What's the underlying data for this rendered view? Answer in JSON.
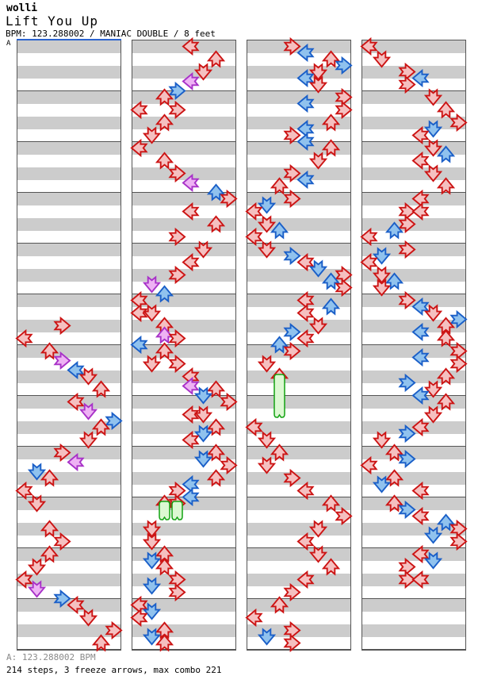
{
  "header": {
    "artist": "wolli",
    "title": "Lift You Up",
    "meta": "BPM: 123.288002 / MANIAC DOUBLE / 8 feet",
    "bpm_marker": "A"
  },
  "footer": {
    "bpm_line": "A: 123.288002 BPM",
    "stats_line": "214 steps, 3 freeze arrows, max combo 221"
  },
  "colors": {
    "quarter_stroke": "#cc1414",
    "quarter_fill": "#f5c0c0",
    "eighth_stroke": "#1a5fc8",
    "eighth_fill": "#90c2ee",
    "sixteenth_stroke": "#a832c8",
    "sixteenth_fill": "#eeb2f4",
    "freeze_stroke": "#11a211",
    "freeze_fill": "#dcf8d2",
    "stripe_gray": "#cccccc",
    "measure_line": "#555555",
    "bpm_line_blue": "#2b63cf",
    "footer_gray": "#8a8a8a"
  },
  "chart": {
    "note_kinds": [
      "quarter-red",
      "eighth-blue",
      "sixteenth-purple"
    ],
    "column_directions": [
      "left",
      "down",
      "up",
      "right",
      "left",
      "down",
      "up",
      "right"
    ],
    "measures_per_panel": 12,
    "panels": [
      {
        "steps": [
          [
            22,
            3,
            0
          ],
          [
            23,
            0,
            0
          ],
          [
            24,
            2,
            0
          ],
          [
            24.75,
            3,
            2
          ],
          [
            25.5,
            4,
            1
          ],
          [
            26,
            5,
            0
          ],
          [
            27,
            6,
            0
          ],
          [
            28,
            4,
            0
          ],
          [
            28.75,
            5,
            2
          ],
          [
            29.5,
            7,
            1
          ],
          [
            30,
            6,
            0
          ],
          [
            31,
            5,
            0
          ],
          [
            32,
            3,
            0
          ],
          [
            32.75,
            4,
            2
          ],
          [
            33.5,
            1,
            1
          ],
          [
            34,
            2,
            0
          ],
          [
            35,
            0,
            0
          ],
          [
            36,
            1,
            0
          ],
          [
            38,
            2,
            0
          ],
          [
            39,
            3,
            0
          ],
          [
            40,
            2,
            0
          ],
          [
            41,
            1,
            0
          ],
          [
            42,
            0,
            0
          ],
          [
            42.75,
            1,
            2
          ],
          [
            43.5,
            3,
            1
          ],
          [
            44,
            4,
            0
          ],
          [
            45,
            5,
            0
          ],
          [
            46,
            7,
            0
          ],
          [
            47,
            6,
            0
          ]
        ]
      },
      {
        "steps": [
          [
            0,
            4,
            0
          ],
          [
            1,
            6,
            0
          ],
          [
            2,
            5,
            0
          ],
          [
            2.75,
            4,
            2
          ],
          [
            3.5,
            3,
            1
          ],
          [
            4,
            2,
            0
          ],
          [
            5,
            0,
            0
          ],
          [
            5,
            3,
            0
          ],
          [
            6,
            2,
            0
          ],
          [
            7,
            1,
            0
          ],
          [
            8,
            0,
            0
          ],
          [
            9,
            2,
            0
          ],
          [
            10,
            3,
            0
          ],
          [
            10.75,
            4,
            2
          ],
          [
            11.5,
            6,
            1
          ],
          [
            12,
            7,
            0
          ],
          [
            13,
            4,
            0
          ],
          [
            14,
            6,
            0
          ],
          [
            15,
            3,
            0
          ],
          [
            16,
            5,
            0
          ],
          [
            17,
            4,
            0
          ],
          [
            18,
            3,
            0
          ],
          [
            18.75,
            1,
            2
          ],
          [
            19.5,
            2,
            1
          ],
          [
            20,
            0,
            0
          ],
          [
            21,
            0,
            0
          ],
          [
            21,
            1,
            0
          ],
          [
            22,
            2,
            0
          ],
          [
            22.75,
            2,
            2
          ],
          [
            23,
            3,
            0
          ],
          [
            23.5,
            0,
            1
          ],
          [
            24,
            2,
            0
          ],
          [
            25,
            1,
            0
          ],
          [
            25,
            3,
            0
          ],
          [
            26,
            4,
            0
          ],
          [
            26.75,
            4,
            2
          ],
          [
            27,
            6,
            0
          ],
          [
            27.5,
            5,
            1
          ],
          [
            28,
            7,
            0
          ],
          [
            29,
            4,
            0
          ],
          [
            29,
            5,
            0
          ],
          [
            30,
            6,
            0
          ],
          [
            30.5,
            5,
            1
          ],
          [
            31,
            4,
            0
          ],
          [
            32,
            6,
            0
          ],
          [
            32.5,
            5,
            1
          ],
          [
            33,
            7,
            0
          ],
          [
            34,
            6,
            0
          ],
          [
            34.5,
            4,
            1
          ],
          [
            35,
            3,
            0
          ],
          [
            35.5,
            4,
            1
          ],
          [
            36,
            2,
            0
          ],
          [
            36,
            3,
            0
          ],
          [
            38,
            1,
            0
          ],
          [
            39,
            1,
            0
          ],
          [
            40,
            2,
            0
          ],
          [
            40.5,
            1,
            1
          ],
          [
            41,
            2,
            0
          ],
          [
            42,
            3,
            0
          ],
          [
            42.5,
            1,
            1
          ],
          [
            43,
            3,
            0
          ],
          [
            44,
            0,
            0
          ],
          [
            44.5,
            1,
            1
          ],
          [
            45,
            0,
            0
          ],
          [
            46,
            2,
            0
          ],
          [
            46.5,
            1,
            1
          ],
          [
            47,
            2,
            0
          ]
        ]
      },
      {
        "steps": [
          [
            0,
            3,
            0
          ],
          [
            0.5,
            4,
            1
          ],
          [
            1,
            6,
            0
          ],
          [
            1.5,
            7,
            1
          ],
          [
            2,
            5,
            0
          ],
          [
            2.5,
            4,
            1
          ],
          [
            3,
            5,
            0
          ],
          [
            4,
            7,
            0
          ],
          [
            4.5,
            4,
            1
          ],
          [
            5,
            7,
            0
          ],
          [
            6,
            6,
            0
          ],
          [
            6.5,
            4,
            1
          ],
          [
            7,
            3,
            0
          ],
          [
            7.5,
            4,
            1
          ],
          [
            8,
            6,
            0
          ],
          [
            9,
            5,
            0
          ],
          [
            10,
            3,
            0
          ],
          [
            10.5,
            4,
            1
          ],
          [
            11,
            2,
            0
          ],
          [
            12,
            3,
            0
          ],
          [
            12.5,
            1,
            1
          ],
          [
            13,
            0,
            0
          ],
          [
            14,
            1,
            0
          ],
          [
            14.5,
            2,
            1
          ],
          [
            15,
            0,
            0
          ],
          [
            16,
            1,
            0
          ],
          [
            16.5,
            3,
            1
          ],
          [
            17,
            4,
            0
          ],
          [
            17.5,
            5,
            1
          ],
          [
            18,
            7,
            0
          ],
          [
            18.5,
            6,
            1
          ],
          [
            19,
            7,
            0
          ],
          [
            20,
            4,
            0
          ],
          [
            20.5,
            6,
            1
          ],
          [
            21,
            4,
            0
          ],
          [
            22,
            5,
            0
          ],
          [
            22.5,
            3,
            1
          ],
          [
            23,
            4,
            0
          ],
          [
            23.5,
            2,
            1
          ],
          [
            24,
            3,
            0
          ],
          [
            25,
            1,
            0
          ],
          [
            26,
            2,
            0
          ],
          [
            30,
            0,
            0
          ],
          [
            31,
            1,
            0
          ],
          [
            32,
            2,
            0
          ],
          [
            33,
            1,
            0
          ],
          [
            34,
            3,
            0
          ],
          [
            35,
            4,
            0
          ],
          [
            36,
            6,
            0
          ],
          [
            37,
            7,
            0
          ],
          [
            38,
            5,
            0
          ],
          [
            39,
            4,
            0
          ],
          [
            40,
            5,
            0
          ],
          [
            41,
            6,
            0
          ],
          [
            42,
            4,
            0
          ],
          [
            43,
            3,
            0
          ],
          [
            44,
            2,
            0
          ],
          [
            45,
            0,
            0
          ],
          [
            46,
            3,
            0
          ],
          [
            46.5,
            1,
            1
          ],
          [
            47,
            3,
            0
          ]
        ]
      },
      {
        "steps": [
          [
            0,
            0,
            0
          ],
          [
            1,
            1,
            0
          ],
          [
            2,
            3,
            0
          ],
          [
            2.5,
            4,
            1
          ],
          [
            3,
            3,
            0
          ],
          [
            4,
            5,
            0
          ],
          [
            5,
            6,
            0
          ],
          [
            6,
            7,
            0
          ],
          [
            6.5,
            5,
            1
          ],
          [
            7,
            4,
            0
          ],
          [
            8,
            5,
            0
          ],
          [
            8.5,
            6,
            1
          ],
          [
            9,
            4,
            0
          ],
          [
            10,
            5,
            0
          ],
          [
            11,
            6,
            0
          ],
          [
            12,
            4,
            0
          ],
          [
            13,
            3,
            0
          ],
          [
            13,
            4,
            0
          ],
          [
            14,
            3,
            0
          ],
          [
            14.5,
            2,
            1
          ],
          [
            15,
            0,
            0
          ],
          [
            16,
            3,
            0
          ],
          [
            16.5,
            1,
            1
          ],
          [
            17,
            0,
            0
          ],
          [
            18,
            1,
            0
          ],
          [
            18.5,
            2,
            1
          ],
          [
            19,
            1,
            0
          ],
          [
            20,
            3,
            0
          ],
          [
            20.5,
            4,
            1
          ],
          [
            21,
            5,
            0
          ],
          [
            21.5,
            7,
            1
          ],
          [
            22,
            6,
            0
          ],
          [
            22.5,
            4,
            1
          ],
          [
            23,
            6,
            0
          ],
          [
            24,
            7,
            0
          ],
          [
            24.5,
            4,
            1
          ],
          [
            25,
            7,
            0
          ],
          [
            26,
            6,
            0
          ],
          [
            26.5,
            3,
            1
          ],
          [
            27,
            5,
            0
          ],
          [
            27.5,
            4,
            1
          ],
          [
            28,
            6,
            0
          ],
          [
            29,
            5,
            0
          ],
          [
            30,
            4,
            0
          ],
          [
            30.5,
            3,
            1
          ],
          [
            31,
            1,
            0
          ],
          [
            32,
            2,
            0
          ],
          [
            32.5,
            3,
            1
          ],
          [
            33,
            0,
            0
          ],
          [
            34,
            2,
            0
          ],
          [
            34.5,
            1,
            1
          ],
          [
            35,
            4,
            0
          ],
          [
            36,
            2,
            0
          ],
          [
            36.5,
            3,
            1
          ],
          [
            37,
            4,
            0
          ],
          [
            37.5,
            6,
            1
          ],
          [
            38,
            7,
            0
          ],
          [
            38.5,
            5,
            1
          ],
          [
            39,
            7,
            0
          ],
          [
            40,
            4,
            0
          ],
          [
            40.5,
            5,
            1
          ],
          [
            41,
            3,
            0
          ],
          [
            42,
            3,
            0
          ],
          [
            42,
            4,
            0
          ]
        ]
      }
    ],
    "freezes": [
      {
        "panel": 1,
        "col": 2,
        "row": 36,
        "body_len": 25
      },
      {
        "panel": 1,
        "col": 3,
        "row": 36,
        "body_len": 25
      },
      {
        "panel": 2,
        "col": 2,
        "row": 26,
        "body_len": 56
      }
    ]
  }
}
